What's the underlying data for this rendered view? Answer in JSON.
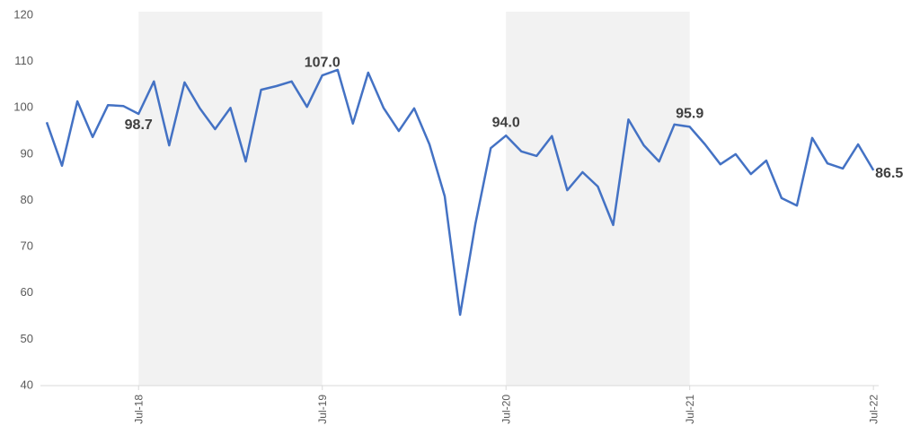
{
  "chart_data": {
    "type": "line",
    "categories": [
      null,
      null,
      null,
      null,
      null,
      null,
      "Jul-18",
      null,
      null,
      null,
      null,
      null,
      null,
      null,
      null,
      null,
      null,
      null,
      "Jul-19",
      null,
      null,
      null,
      null,
      null,
      null,
      null,
      null,
      null,
      null,
      null,
      "Jul-20",
      null,
      null,
      null,
      null,
      null,
      null,
      null,
      null,
      null,
      null,
      null,
      "Jul-21",
      null,
      null,
      null,
      null,
      null,
      null,
      null,
      null,
      null,
      null,
      null,
      "Jul-22"
    ],
    "series": [
      {
        "color": "#4472c4",
        "values": [
          96.9,
          87.5,
          101.4,
          93.7,
          100.6,
          100.4,
          98.7,
          105.7,
          91.9,
          105.5,
          99.9,
          95.4,
          100.0,
          88.4,
          103.9,
          104.7,
          105.7,
          100.2,
          107.0,
          108.2,
          96.6,
          107.6,
          100.0,
          95.0,
          99.9,
          92.1,
          80.9,
          55.3,
          74.9,
          91.3,
          94.0,
          90.6,
          89.6,
          93.9,
          82.2,
          86.1,
          83.0,
          74.7,
          97.5,
          91.9,
          88.4,
          96.4,
          95.9,
          92.1,
          87.8,
          90.0,
          85.7,
          88.6,
          80.5,
          78.9,
          93.5,
          88.0,
          86.9,
          92.1,
          86.5
        ],
        "value_labels": [
          null,
          null,
          null,
          null,
          null,
          null,
          "98.7",
          null,
          null,
          null,
          null,
          null,
          null,
          null,
          null,
          null,
          null,
          null,
          "107.0",
          null,
          null,
          null,
          null,
          null,
          null,
          null,
          null,
          null,
          null,
          null,
          "94.0",
          null,
          null,
          null,
          null,
          null,
          null,
          null,
          null,
          null,
          null,
          null,
          "95.9",
          null,
          null,
          null,
          null,
          null,
          null,
          null,
          null,
          null,
          null,
          null,
          "86.5"
        ]
      }
    ],
    "ylim": [
      40,
      120
    ],
    "yticks": [
      40,
      50,
      60,
      70,
      80,
      90,
      100,
      110,
      120
    ],
    "shaded_ranges": [
      [
        "Jul-18",
        "Jul-19"
      ],
      [
        "Jul-20",
        "Jul-21"
      ]
    ],
    "shade_color": "#f2f2f2"
  }
}
